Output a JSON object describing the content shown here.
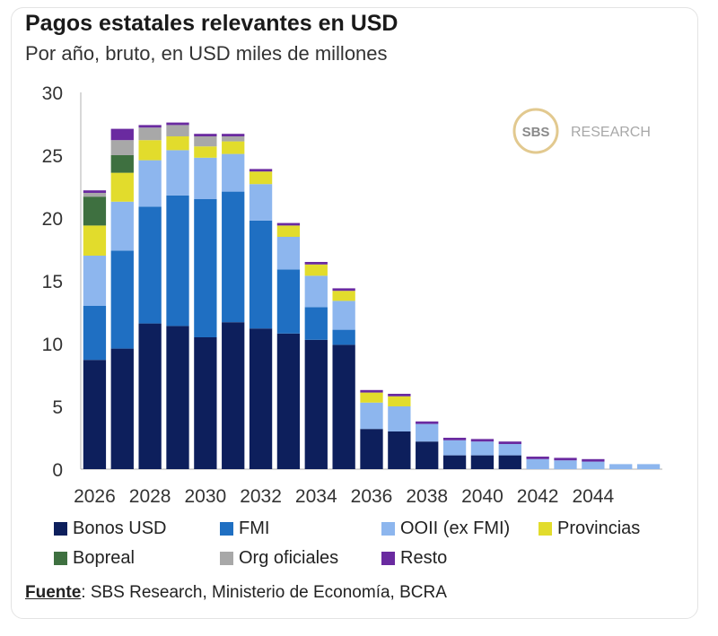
{
  "header": {
    "title": "Pagos estatales relevantes en USD",
    "subtitle": "Por año, bruto, en USD miles de millones"
  },
  "watermark": {
    "badge": "SBS",
    "text": "RESEARCH"
  },
  "source": {
    "label": "Fuente",
    "text": ": SBS Research, Ministerio de Economía, BCRA"
  },
  "colors": {
    "Bonos USD": "#0d1f5c",
    "FMI": "#1f6fc2",
    "OOII (ex FMI)": "#8db6ee",
    "Provincias": "#e2dc2c",
    "Bopreal": "#3e7040",
    "Org oficiales": "#a8a8a8",
    "Resto": "#6a2aa0"
  },
  "chart_data": {
    "type": "bar",
    "stacked": true,
    "title": "Pagos estatales relevantes en USD",
    "subtitle": "Por año, bruto, en USD miles de millones",
    "categories": [
      "2026",
      "2027",
      "2028",
      "2029",
      "2030",
      "2031",
      "2032",
      "2033",
      "2034",
      "2035",
      "2036",
      "2037",
      "2038",
      "2039",
      "2040",
      "2041",
      "2042",
      "2043",
      "2044",
      "2045",
      "2046"
    ],
    "x_tick_labels": [
      "2026",
      "2028",
      "2030",
      "2032",
      "2034",
      "2036",
      "2038",
      "2040",
      "2042",
      "2044"
    ],
    "ylim": [
      0,
      30
    ],
    "yticks": [
      0,
      5,
      10,
      15,
      20,
      25,
      30
    ],
    "legend_position": "bottom",
    "series": [
      {
        "name": "Bonos USD",
        "values": [
          8.7,
          9.6,
          11.6,
          11.4,
          10.5,
          11.7,
          11.2,
          10.8,
          10.3,
          9.9,
          3.2,
          3.0,
          2.2,
          1.1,
          1.1,
          1.1,
          0,
          0,
          0,
          0,
          0
        ]
      },
      {
        "name": "FMI",
        "values": [
          4.3,
          7.8,
          9.3,
          10.4,
          11.0,
          10.4,
          8.6,
          5.1,
          2.6,
          1.2,
          0,
          0,
          0,
          0,
          0,
          0,
          0,
          0,
          0,
          0,
          0
        ]
      },
      {
        "name": "OOII (ex FMI)",
        "values": [
          4.0,
          3.9,
          3.7,
          3.6,
          3.3,
          3.0,
          2.9,
          2.6,
          2.5,
          2.3,
          2.1,
          2.0,
          1.4,
          1.2,
          1.1,
          0.9,
          0.8,
          0.7,
          0.6,
          0.4,
          0.4
        ]
      },
      {
        "name": "Provincias",
        "values": [
          2.4,
          2.3,
          1.6,
          1.1,
          0.9,
          1.0,
          1.0,
          0.9,
          0.9,
          0.8,
          0.8,
          0.8,
          0,
          0,
          0,
          0,
          0,
          0,
          0,
          0,
          0
        ]
      },
      {
        "name": "Bopreal",
        "values": [
          2.3,
          1.4,
          0,
          0,
          0,
          0,
          0,
          0,
          0,
          0,
          0,
          0,
          0,
          0,
          0,
          0,
          0,
          0,
          0,
          0,
          0
        ]
      },
      {
        "name": "Org oficiales",
        "values": [
          0.3,
          1.2,
          1.0,
          0.9,
          0.8,
          0.4,
          0,
          0,
          0,
          0,
          0,
          0,
          0,
          0,
          0,
          0,
          0,
          0,
          0,
          0,
          0
        ]
      },
      {
        "name": "Resto",
        "values": [
          0.2,
          0.9,
          0.2,
          0.2,
          0.2,
          0.2,
          0.2,
          0.2,
          0.2,
          0.2,
          0.2,
          0.2,
          0.2,
          0.2,
          0.2,
          0.2,
          0.2,
          0.2,
          0.2,
          0,
          0
        ]
      }
    ]
  }
}
